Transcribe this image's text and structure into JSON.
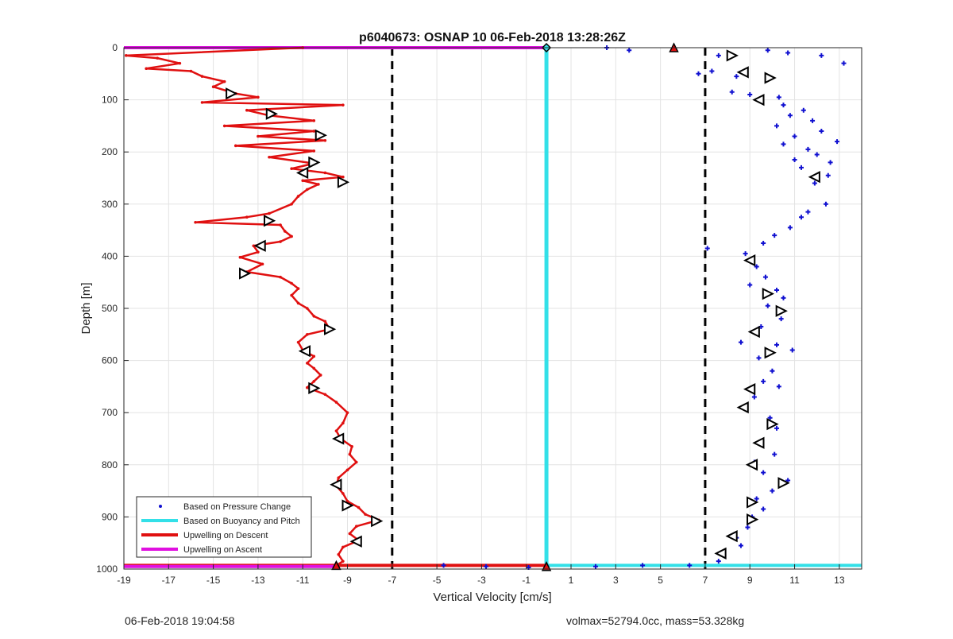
{
  "footer": {
    "timestamp": "06-Feb-2018 19:04:58",
    "stats": "volmax=52794.0cc, mass=53.328kg"
  },
  "colors": {
    "pressure": "#1010d0",
    "buoyancy": "#33e0e8",
    "descent": "#e01010",
    "ascent": "#e010e0",
    "threshold": "#000000"
  },
  "chart_data": {
    "type": "scatter",
    "title": "p6040673: OSNAP 10 06-Feb-2018 13:28:26Z",
    "xlabel": "Vertical Velocity [cm/s]",
    "ylabel": "Depth [m]",
    "xlim": [
      -19,
      14
    ],
    "ylim": [
      0,
      1000
    ],
    "y_reversed": true,
    "grid": true,
    "x_ticks": [
      -19,
      -17,
      -15,
      -13,
      -11,
      -9,
      -7,
      -5,
      -3,
      -1,
      1,
      3,
      5,
      7,
      9,
      11,
      13
    ],
    "y_ticks": [
      0,
      100,
      200,
      300,
      400,
      500,
      600,
      700,
      800,
      900,
      1000
    ],
    "legend_position": "bottom-left",
    "legend": [
      "Based on Pressure Change",
      "Based on Buoyancy and Pitch",
      "Upwelling on Descent",
      "Upwelling on Ascent"
    ],
    "thresholds": [
      -7,
      7
    ],
    "series": [
      {
        "name": "Upwelling on Descent",
        "style": "line",
        "points": [
          [
            -11,
            0
          ],
          [
            -18.9,
            15
          ],
          [
            -17.5,
            20
          ],
          [
            -16.5,
            30
          ],
          [
            -18,
            40
          ],
          [
            -16,
            45
          ],
          [
            -15.5,
            55
          ],
          [
            -14.5,
            65
          ],
          [
            -15,
            75
          ],
          [
            -14,
            88
          ],
          [
            -13,
            95
          ],
          [
            -15.5,
            105
          ],
          [
            -9.2,
            110
          ],
          [
            -13.5,
            120
          ],
          [
            -12.5,
            130
          ],
          [
            -10.5,
            140
          ],
          [
            -14.5,
            150
          ],
          [
            -10.5,
            160
          ],
          [
            -13,
            170
          ],
          [
            -10,
            178
          ],
          [
            -14,
            188
          ],
          [
            -10.5,
            198
          ],
          [
            -12.5,
            210
          ],
          [
            -10.5,
            222
          ],
          [
            -11.5,
            232
          ],
          [
            -10,
            240
          ],
          [
            -9.2,
            248
          ],
          [
            -11,
            255
          ],
          [
            -10.3,
            262
          ],
          [
            -10.8,
            272
          ],
          [
            -11.2,
            285
          ],
          [
            -11.5,
            300
          ],
          [
            -12.5,
            318
          ],
          [
            -13.5,
            325
          ],
          [
            -15.8,
            335
          ],
          [
            -12,
            340
          ],
          [
            -11.8,
            352
          ],
          [
            -11.5,
            362
          ],
          [
            -12,
            372
          ],
          [
            -13.2,
            380
          ],
          [
            -13,
            392
          ],
          [
            -13.8,
            402
          ],
          [
            -12.8,
            415
          ],
          [
            -13.5,
            430
          ],
          [
            -12,
            440
          ],
          [
            -11.5,
            452
          ],
          [
            -11.2,
            462
          ],
          [
            -11.5,
            475
          ],
          [
            -11.2,
            490
          ],
          [
            -10.8,
            500
          ],
          [
            -10.5,
            515
          ],
          [
            -10,
            525
          ],
          [
            -9.8,
            540
          ],
          [
            -10.8,
            550
          ],
          [
            -11.2,
            565
          ],
          [
            -11,
            580
          ],
          [
            -10.5,
            592
          ],
          [
            -10.8,
            605
          ],
          [
            -10.5,
            615
          ],
          [
            -10.2,
            628
          ],
          [
            -10.5,
            640
          ],
          [
            -10.8,
            652
          ],
          [
            -10,
            665
          ],
          [
            -9.5,
            680
          ],
          [
            -9,
            700
          ],
          [
            -9.2,
            720
          ],
          [
            -9.5,
            735
          ],
          [
            -9.3,
            750
          ],
          [
            -8.8,
            765
          ],
          [
            -8.9,
            780
          ],
          [
            -8.6,
            795
          ],
          [
            -9,
            810
          ],
          [
            -9.4,
            825
          ],
          [
            -9.5,
            840
          ],
          [
            -9.2,
            855
          ],
          [
            -9,
            870
          ],
          [
            -8.5,
            882
          ],
          [
            -8.2,
            895
          ],
          [
            -7.6,
            906
          ],
          [
            -8.6,
            918
          ],
          [
            -8.9,
            932
          ],
          [
            -8.5,
            945
          ],
          [
            -9.2,
            958
          ],
          [
            -9.4,
            972
          ],
          [
            -9.2,
            985
          ],
          [
            -9.5,
            993
          ]
        ]
      },
      {
        "name": "Based on Pressure Change",
        "style": "points",
        "points": [
          [
            2.6,
            0
          ],
          [
            3.6,
            5
          ],
          [
            9.8,
            5
          ],
          [
            10.7,
            10
          ],
          [
            12.2,
            15
          ],
          [
            13.2,
            30
          ],
          [
            7.6,
            15
          ],
          [
            7.3,
            45
          ],
          [
            6.7,
            50
          ],
          [
            8.4,
            55
          ],
          [
            8.2,
            85
          ],
          [
            9,
            90
          ],
          [
            10.3,
            95
          ],
          [
            9.5,
            100
          ],
          [
            10.5,
            110
          ],
          [
            11.4,
            120
          ],
          [
            10.8,
            130
          ],
          [
            11.8,
            140
          ],
          [
            10.2,
            150
          ],
          [
            12.2,
            160
          ],
          [
            11,
            170
          ],
          [
            12.9,
            180
          ],
          [
            10.5,
            185
          ],
          [
            11.6,
            195
          ],
          [
            12,
            205
          ],
          [
            11,
            215
          ],
          [
            12.6,
            220
          ],
          [
            11.3,
            230
          ],
          [
            12.5,
            245
          ],
          [
            11.9,
            260
          ],
          [
            12.4,
            300
          ],
          [
            11.6,
            315
          ],
          [
            11.3,
            325
          ],
          [
            10.8,
            345
          ],
          [
            10.1,
            360
          ],
          [
            9.6,
            375
          ],
          [
            7.1,
            385
          ],
          [
            8.8,
            395
          ],
          [
            9.3,
            420
          ],
          [
            9.7,
            440
          ],
          [
            9,
            455
          ],
          [
            10.2,
            465
          ],
          [
            10.5,
            480
          ],
          [
            9.8,
            495
          ],
          [
            10.4,
            520
          ],
          [
            9.5,
            535
          ],
          [
            8.6,
            565
          ],
          [
            10.2,
            570
          ],
          [
            10.9,
            580
          ],
          [
            9.4,
            595
          ],
          [
            10,
            620
          ],
          [
            9.6,
            640
          ],
          [
            10.3,
            650
          ],
          [
            9.2,
            670
          ],
          [
            8.8,
            690
          ],
          [
            9.9,
            710
          ],
          [
            10.2,
            730
          ],
          [
            9.5,
            755
          ],
          [
            10.1,
            780
          ],
          [
            9.2,
            795
          ],
          [
            9.6,
            815
          ],
          [
            10.7,
            830
          ],
          [
            10,
            850
          ],
          [
            9.3,
            865
          ],
          [
            9.6,
            885
          ],
          [
            9.1,
            900
          ],
          [
            8.9,
            920
          ],
          [
            8.4,
            940
          ],
          [
            8.6,
            955
          ],
          [
            7.8,
            970
          ],
          [
            7.6,
            985
          ],
          [
            4.2,
            993
          ],
          [
            2.1,
            995
          ],
          [
            -4.7,
            993
          ],
          [
            -2.8,
            995
          ],
          [
            -0.9,
            997
          ],
          [
            6.3,
            993
          ]
        ]
      },
      {
        "name": "Based on Buoyancy and Pitch",
        "style": "points",
        "points": [
          [
            -0.1,
            0
          ],
          [
            -0.1,
            100
          ],
          [
            -0.1,
            200
          ],
          [
            -0.1,
            300
          ],
          [
            -0.1,
            400
          ],
          [
            -0.1,
            500
          ],
          [
            -0.1,
            600
          ],
          [
            -0.1,
            700
          ],
          [
            -0.1,
            800
          ],
          [
            -0.1,
            900
          ],
          [
            -0.1,
            995
          ]
        ]
      },
      {
        "name": "Upwelling on Ascent",
        "style": "line",
        "points": [
          [
            -19,
            0
          ],
          [
            -0.1,
            0
          ]
        ]
      }
    ],
    "horizontal_lines": [
      {
        "series": "Upwelling on Ascent",
        "y": 0,
        "x": [
          -19,
          -0.1
        ]
      },
      {
        "series": "Upwelling on Descent",
        "y": 993,
        "x": [
          -19,
          -0.1
        ]
      },
      {
        "series": "Based on Buoyancy and Pitch",
        "y": 993,
        "x": [
          -0.1,
          14
        ]
      },
      {
        "series": "Upwelling on Ascent",
        "y": 995,
        "x": [
          -19,
          -9.5
        ]
      }
    ],
    "triangle_markers": [
      {
        "x": -14.2,
        "y": 88,
        "dir": "right"
      },
      {
        "x": -12.4,
        "y": 127,
        "dir": "right"
      },
      {
        "x": -10.2,
        "y": 168,
        "dir": "right"
      },
      {
        "x": -10.5,
        "y": 220,
        "dir": "right"
      },
      {
        "x": -11,
        "y": 240,
        "dir": "left"
      },
      {
        "x": -9.2,
        "y": 258,
        "dir": "right"
      },
      {
        "x": -12.5,
        "y": 332,
        "dir": "right"
      },
      {
        "x": -12.9,
        "y": 380,
        "dir": "left"
      },
      {
        "x": -13.6,
        "y": 433,
        "dir": "right"
      },
      {
        "x": -9.8,
        "y": 540,
        "dir": "right"
      },
      {
        "x": -10.9,
        "y": 582,
        "dir": "left"
      },
      {
        "x": -10.5,
        "y": 653,
        "dir": "right"
      },
      {
        "x": -9.4,
        "y": 750,
        "dir": "left"
      },
      {
        "x": -9.5,
        "y": 838,
        "dir": "left"
      },
      {
        "x": -9,
        "y": 878,
        "dir": "right"
      },
      {
        "x": -7.7,
        "y": 908,
        "dir": "right"
      },
      {
        "x": -8.6,
        "y": 947,
        "dir": "left"
      },
      {
        "x": 8.2,
        "y": 15,
        "dir": "right"
      },
      {
        "x": 8.7,
        "y": 47,
        "dir": "left"
      },
      {
        "x": 9.9,
        "y": 58,
        "dir": "right"
      },
      {
        "x": 9.4,
        "y": 100,
        "dir": "left"
      },
      {
        "x": 11.9,
        "y": 248,
        "dir": "left"
      },
      {
        "x": 9,
        "y": 408,
        "dir": "left"
      },
      {
        "x": 9.8,
        "y": 472,
        "dir": "right"
      },
      {
        "x": 10.4,
        "y": 505,
        "dir": "right"
      },
      {
        "x": 9.2,
        "y": 545,
        "dir": "left"
      },
      {
        "x": 9.9,
        "y": 585,
        "dir": "right"
      },
      {
        "x": 9,
        "y": 655,
        "dir": "left"
      },
      {
        "x": 8.7,
        "y": 690,
        "dir": "left"
      },
      {
        "x": 10,
        "y": 722,
        "dir": "right"
      },
      {
        "x": 9.4,
        "y": 758,
        "dir": "left"
      },
      {
        "x": 9.1,
        "y": 800,
        "dir": "left"
      },
      {
        "x": 10.5,
        "y": 835,
        "dir": "right"
      },
      {
        "x": 9.1,
        "y": 872,
        "dir": "right"
      },
      {
        "x": 9.1,
        "y": 905,
        "dir": "right"
      },
      {
        "x": 8.2,
        "y": 937,
        "dir": "left"
      },
      {
        "x": 7.7,
        "y": 970,
        "dir": "left"
      }
    ],
    "special_markers": [
      {
        "x": -0.1,
        "y": 0,
        "shape": "diamond",
        "fill": "#33e0e8"
      },
      {
        "x": 5.6,
        "y": 0,
        "shape": "triangle-up",
        "fill": "#e01010"
      },
      {
        "x": -0.1,
        "y": 995,
        "shape": "triangle-up",
        "fill": "#e01010"
      },
      {
        "x": -9.5,
        "y": 993,
        "shape": "triangle-up",
        "fill": "#e01010"
      }
    ]
  }
}
